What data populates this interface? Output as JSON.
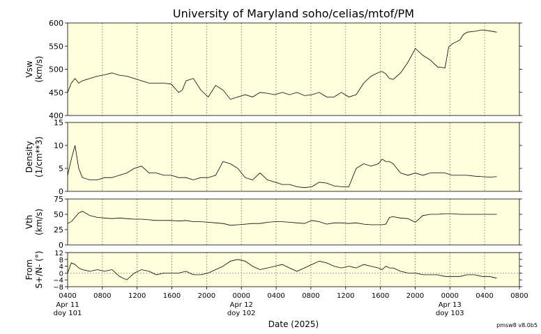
{
  "chart_data": {
    "type": "line",
    "title": "University of Maryland  soho/celias/mtof/PM",
    "xlabel": "Date (2025)",
    "version": "pmsw8 v8.0b5",
    "x_tick_labels": [
      "0400",
      "0800",
      "1200",
      "1600",
      "2000",
      "0000",
      "0400",
      "0800",
      "1200",
      "1600",
      "2000",
      "0000",
      "0400",
      "0800"
    ],
    "date_labels": [
      {
        "tick": 0,
        "date": "Apr 11",
        "doy": "doy 101"
      },
      {
        "tick": 5,
        "date": "Apr 12",
        "doy": "doy 102"
      },
      {
        "tick": 11,
        "date": "Apr 13",
        "doy": "doy 103"
      }
    ],
    "grid": "vertical dotted",
    "panel_background": "#ffffdd",
    "line_color": "#000000",
    "panels": [
      {
        "name": "vsw",
        "ylabel": [
          "Vsw",
          "(km/s)"
        ],
        "ylim": [
          400,
          600
        ],
        "yticks": [
          400,
          450,
          500,
          550,
          600
        ],
        "series": [
          {
            "x": [
              0,
              0.5,
              1,
              1.5,
              2,
              3,
              4,
              5,
              6,
              7,
              8,
              9,
              10,
              11,
              12,
              13,
              14,
              15,
              15.5,
              16,
              17,
              18,
              19,
              20,
              21,
              22,
              23,
              24,
              25,
              26,
              27,
              28,
              29,
              30,
              31,
              32,
              33,
              34,
              35,
              36,
              37,
              38,
              39,
              40,
              41,
              42,
              42.5,
              43,
              43.5,
              44,
              45,
              46,
              47,
              48,
              49,
              50,
              51,
              51.5,
              52,
              53,
              53.5,
              54,
              55,
              56,
              57,
              58
            ],
            "y": [
              450,
              470,
              480,
              470,
              475,
              480,
              485,
              488,
              492,
              487,
              485,
              480,
              475,
              470,
              470,
              470,
              468,
              450,
              455,
              475,
              480,
              455,
              440,
              465,
              455,
              435,
              440,
              445,
              440,
              450,
              448,
              445,
              450,
              445,
              450,
              443,
              445,
              450,
              440,
              440,
              450,
              440,
              445,
              470,
              485,
              493,
              495,
              490,
              480,
              478,
              492,
              515,
              545,
              530,
              520,
              505,
              503,
              548,
              555,
              563,
              575,
              580,
              582,
              585,
              583,
              580
            ]
          }
        ]
      },
      {
        "name": "density",
        "ylabel": [
          "Density",
          "(1/cm**3)"
        ],
        "ylim": [
          0,
          15
        ],
        "yticks": [
          0,
          5,
          10,
          15
        ],
        "series": [
          {
            "x": [
              0,
              0.5,
              1,
              1.5,
              2,
              3,
              4,
              5,
              6,
              7,
              8,
              9,
              10,
              11,
              12,
              13,
              14,
              15,
              16,
              17,
              18,
              19,
              20,
              21,
              22,
              23,
              24,
              25,
              26,
              27,
              28,
              29,
              30,
              31,
              32,
              33,
              34,
              35,
              36,
              37,
              38,
              39,
              40,
              41,
              42,
              42.5,
              43,
              43.5,
              44,
              45,
              46,
              47,
              48,
              49,
              50,
              51,
              52,
              53,
              54,
              55,
              56,
              57,
              58
            ],
            "y": [
              3.5,
              7,
              10,
              5,
              3,
              2.5,
              2.5,
              3,
              3,
              3.5,
              4,
              5,
              5.5,
              4,
              4,
              3.5,
              3.5,
              3,
              3,
              2.5,
              3,
              3,
              3.5,
              6.5,
              6,
              5,
              3,
              2.5,
              4,
              2.5,
              2,
              1.5,
              1.5,
              1,
              0.8,
              1,
              2,
              1.8,
              1.2,
              1,
              1,
              5,
              6,
              5.5,
              6,
              7,
              6.5,
              6.5,
              6,
              4,
              3.5,
              4,
              3.5,
              4,
              4,
              4,
              3.5,
              3.5,
              3.5,
              3.3,
              3.2,
              3.1,
              3.2
            ]
          }
        ]
      },
      {
        "name": "vth",
        "ylabel": [
          "Vth",
          "(km/s)"
        ],
        "ylim": [
          0,
          75
        ],
        "yticks": [
          0,
          25,
          50,
          75
        ],
        "series": [
          {
            "x": [
              0,
              0.5,
              1,
              1.5,
              2,
              3,
              4,
              5,
              6,
              7,
              8,
              9,
              10,
              11,
              12,
              13,
              14,
              15,
              16,
              17,
              18,
              19,
              20,
              21,
              22,
              23,
              24,
              25,
              26,
              27,
              28,
              29,
              30,
              31,
              32,
              33,
              34,
              35,
              36,
              37,
              38,
              39,
              40,
              41,
              42,
              42.5,
              43,
              43.5,
              44,
              45,
              46,
              47,
              48,
              49,
              50,
              51,
              52,
              53,
              54,
              55,
              56,
              57,
              58
            ],
            "y": [
              35,
              38,
              45,
              52,
              55,
              48,
              45,
              44,
              43,
              44,
              43,
              42,
              42,
              41,
              40,
              40,
              40,
              39,
              40,
              38,
              38,
              37,
              36,
              35,
              32,
              33,
              34,
              35,
              35,
              37,
              38,
              38,
              37,
              36,
              35,
              40,
              38,
              34,
              36,
              36,
              35,
              36,
              34,
              33,
              33,
              33,
              34,
              45,
              46,
              44,
              43,
              37,
              48,
              50,
              50,
              51,
              51,
              50,
              50,
              50,
              50,
              50,
              50
            ]
          }
        ]
      },
      {
        "name": "from",
        "ylabel": [
          "From",
          "S+/N- (°)"
        ],
        "ylim": [
          -8,
          12
        ],
        "yticks": [
          -8,
          -4,
          0,
          4,
          8,
          12
        ],
        "extra_tick_labels": [
          "−4",
          "−8"
        ],
        "series": [
          {
            "x": [
              0,
              0.5,
              1,
              1.5,
              2,
              3,
              4,
              5,
              6,
              7,
              8,
              9,
              10,
              11,
              12,
              13,
              14,
              15,
              16,
              17,
              18,
              19,
              20,
              21,
              22,
              23,
              24,
              25,
              26,
              27,
              28,
              29,
              30,
              31,
              32,
              33,
              34,
              35,
              36,
              37,
              38,
              39,
              40,
              41,
              42,
              42.5,
              43,
              43.5,
              44,
              45,
              46,
              47,
              48,
              49,
              50,
              51,
              52,
              53,
              54,
              55,
              56,
              57,
              58
            ],
            "y": [
              0,
              6,
              5,
              3,
              2,
              1,
              2,
              1,
              2,
              -2,
              -4,
              0,
              2,
              1,
              -1,
              0,
              0,
              0,
              1,
              -1,
              -1,
              0,
              2,
              4,
              7,
              8,
              7,
              4,
              2,
              3,
              4,
              5,
              3,
              1,
              3,
              5,
              7,
              6,
              4,
              3,
              4,
              3,
              5,
              4,
              3,
              2,
              4,
              3,
              3,
              1,
              0,
              0,
              -1,
              -1,
              -1,
              -2,
              -2,
              -2,
              -1,
              -1,
              -2,
              -2,
              -3
            ]
          }
        ]
      }
    ]
  }
}
